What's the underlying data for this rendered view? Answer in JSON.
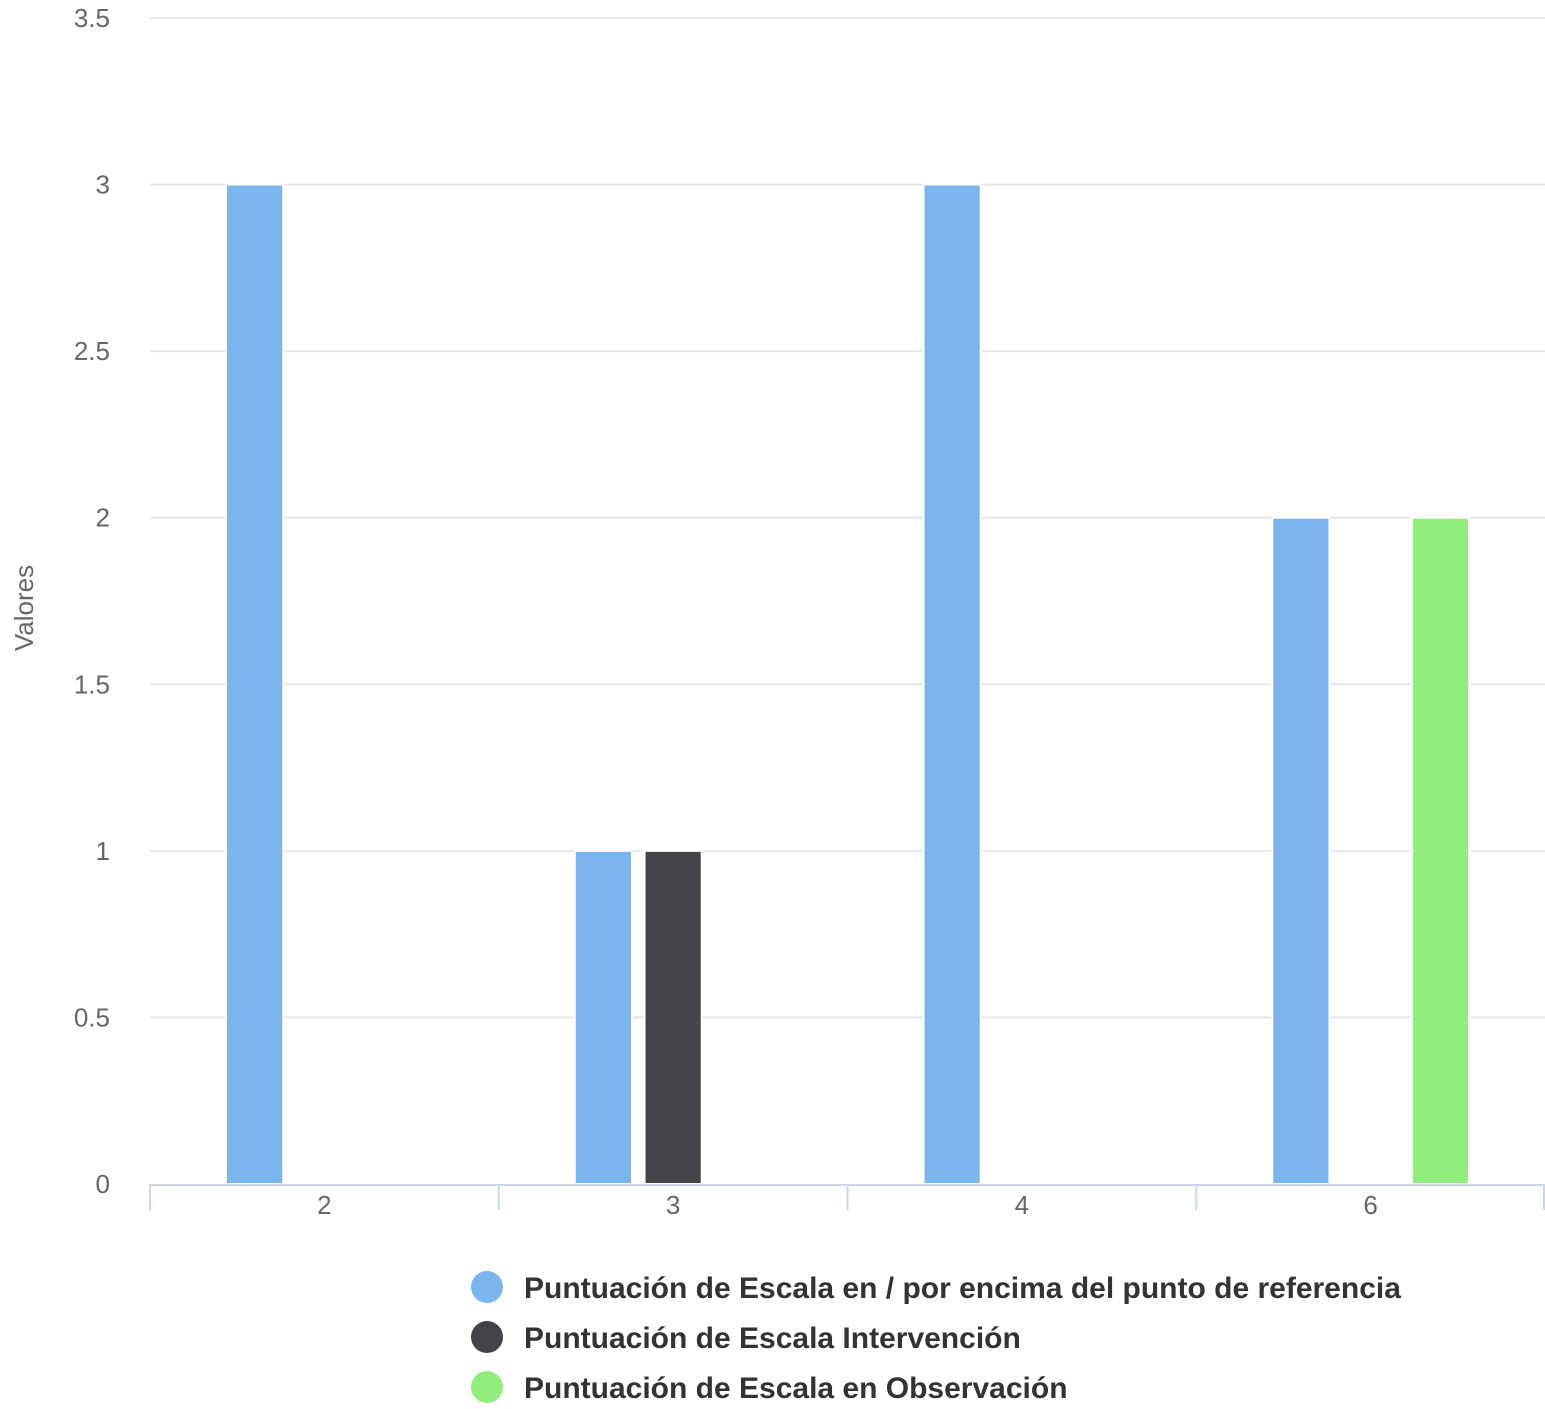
{
  "chart_data": {
    "type": "bar",
    "title": "",
    "xlabel": "",
    "ylabel": "Valores",
    "categories": [
      "2",
      "3",
      "4",
      "6"
    ],
    "ylim": [
      0,
      3.5
    ],
    "yticks": [
      "0",
      "0.5",
      "1",
      "1.5",
      "2",
      "2.5",
      "3",
      "3.5"
    ],
    "grid": true,
    "legend_position": "bottom",
    "series": [
      {
        "name": "Puntuación de Escala en / por encima del punto de referencia",
        "color": "#7cb5ec",
        "values": [
          3,
          1,
          3,
          2
        ]
      },
      {
        "name": "Puntuación de Escala Intervención",
        "color": "#434348",
        "values": [
          0,
          1,
          0,
          0
        ]
      },
      {
        "name": "Puntuación de Escala en Observación",
        "color": "#90ed7d",
        "values": [
          0,
          0,
          0,
          2
        ]
      }
    ]
  }
}
